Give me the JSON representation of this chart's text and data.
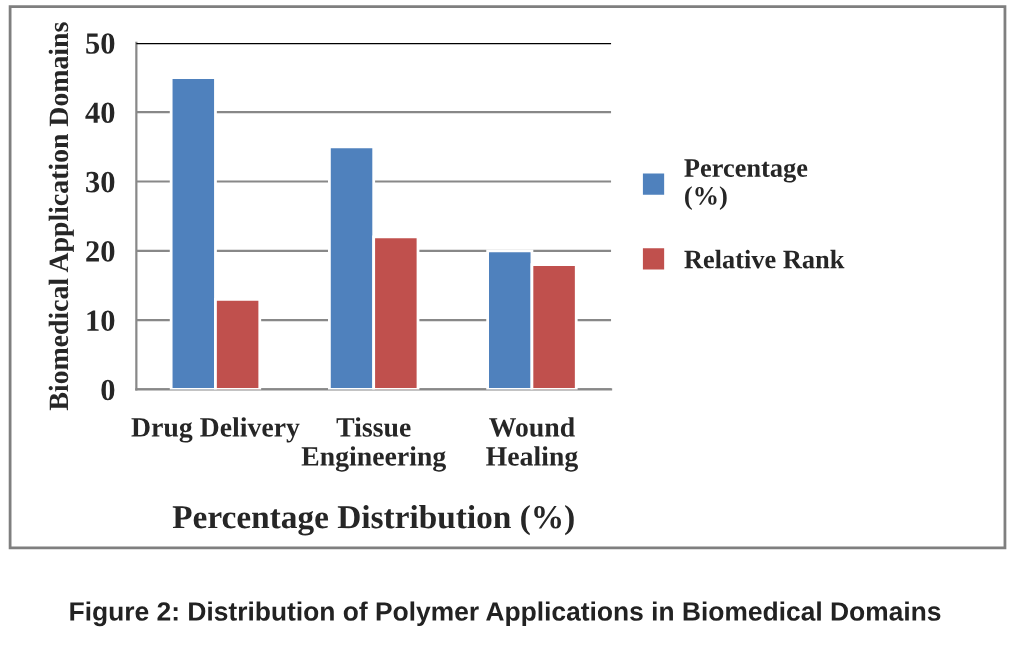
{
  "chart_data": {
    "type": "bar",
    "categories": [
      "Drug Delivery",
      "Tissue\nEngineering",
      "Wound\nHealing"
    ],
    "series": [
      {
        "name": "Percentage\n(%)",
        "color": "#4f81bd",
        "values": [
          45,
          35,
          20
        ]
      },
      {
        "name": "Relative Rank",
        "color": "#c0504d",
        "values": [
          13,
          22,
          18
        ]
      }
    ],
    "xlabel": "Percentage Distribution (%)",
    "ylabel": "Biomedical Application Domains",
    "ylim": [
      0,
      50
    ],
    "yticks": [
      0,
      10,
      20,
      30,
      40,
      50
    ],
    "grid": "y",
    "legend": "right",
    "annotations": [
      "Figure 2: Distribution of Polymer Applications in Biomedical Domains"
    ]
  }
}
